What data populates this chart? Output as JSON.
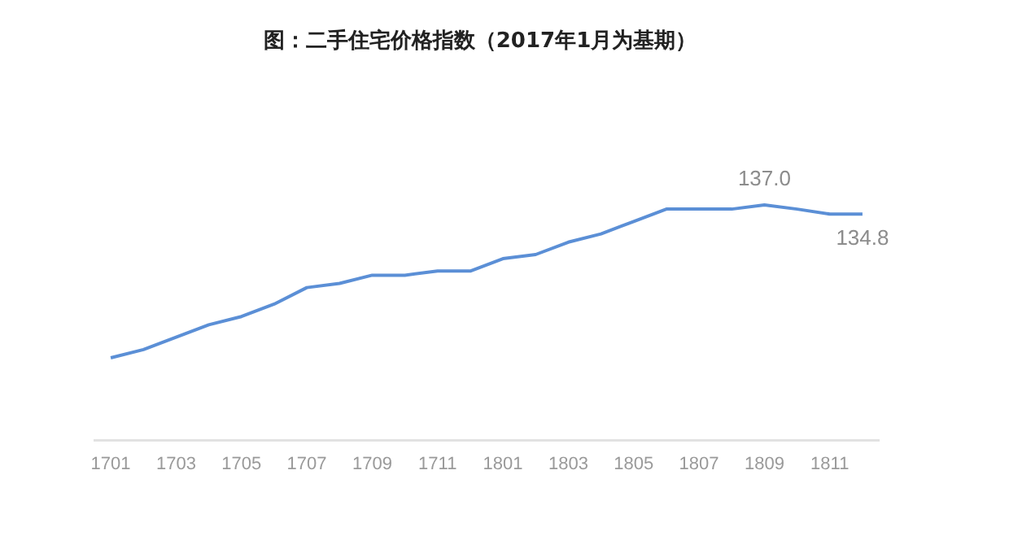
{
  "chart_data": {
    "type": "line",
    "title": "图：二手住宅价格指数（2017年1月为基期）",
    "categories": [
      "1701",
      null,
      "1703",
      null,
      "1705",
      null,
      "1707",
      null,
      "1709",
      null,
      "1711",
      null,
      "1801",
      null,
      "1803",
      null,
      "1805",
      null,
      "1807",
      null,
      "1809",
      null,
      "1811",
      null
    ],
    "series": [
      {
        "color": "#5b8fd6",
        "values": [
          100,
          102,
          105,
          108,
          110,
          113,
          117,
          118,
          120,
          120,
          121,
          121,
          124,
          125,
          128,
          130,
          133,
          136,
          136,
          136,
          137.0,
          136,
          134.8,
          134.8
        ],
        "value_labels": [
          null,
          null,
          null,
          null,
          null,
          null,
          null,
          null,
          null,
          null,
          null,
          null,
          null,
          null,
          null,
          null,
          null,
          null,
          null,
          null,
          "137.0",
          null,
          null,
          "134.8"
        ]
      }
    ],
    "tick_labels": "x",
    "grid": false,
    "legend": false,
    "marker": "none",
    "line_style": "solid"
  }
}
